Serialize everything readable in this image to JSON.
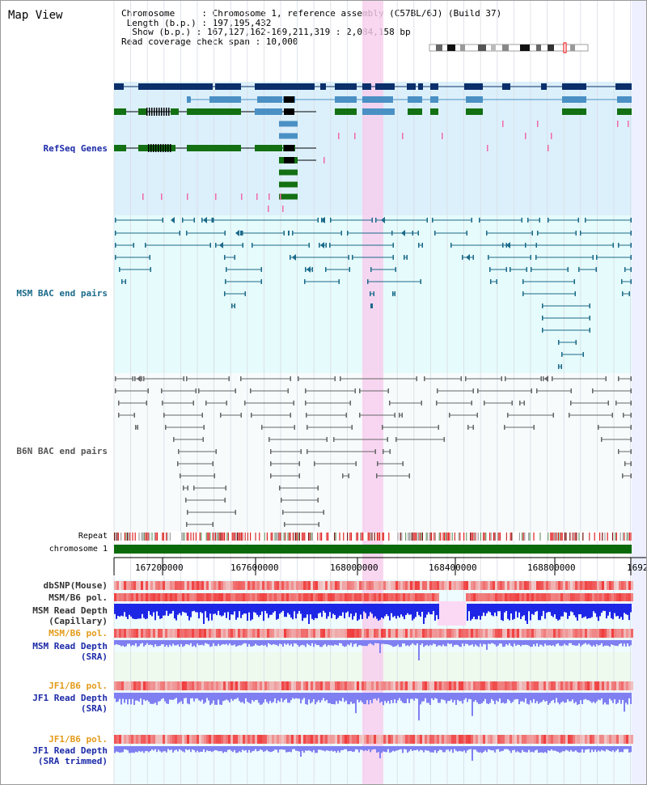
{
  "header": {
    "title": "Map View",
    "info_lines": [
      "Chromosome     : Chromosome 1, reference assembly (C57BL/6J) (Build 37)",
      " Length (b.p.) : 197,195,432",
      "  Show (b.p.) : 167,127,162-169,211,319 : 2,084,158 bp",
      "Read coverage check span : 10,000"
    ]
  },
  "tracks": {
    "refseq_label": "RefSeq Genes",
    "msm_bac_label": "MSM BAC end pairs",
    "b6n_bac_label": "B6N BAC end pairs",
    "repeat_label": "Repeat",
    "chromosome_label": "chromosome 1",
    "dbsnp_label": "dbSNP(Mouse)",
    "msm_b6_pol_label": "MSM/B6 pol.",
    "msm_read_depth_cap_label": "MSM Read Depth",
    "msm_read_depth_cap_sub": "(Capillary)",
    "msm_b6_pol2_label": "MSM/B6 pol.",
    "msm_read_depth_sra_label": "MSM Read Depth",
    "msm_read_depth_sra_sub": "(SRA)",
    "jf1_b6_pol_label": "JF1/B6 pol.",
    "jf1_read_depth_label": "JF1 Read Depth",
    "jf1_read_depth_sub": "(SRA)",
    "jf1_b6_pol2_label": "JF1/B6 pol.",
    "jf1_read_depth_trim_label": "JF1 Read Depth",
    "jf1_read_depth_trim_sub": "(SRA trimmed)"
  },
  "axis": {
    "ticks": [
      "167200000",
      "167600000",
      "168000000",
      "168400000",
      "168800000",
      "1692"
    ]
  },
  "colors": {
    "refseq_bg": "#dcf0fb",
    "bac_bg": "#e6fbfb",
    "b6n_bg": "#f4f9fb",
    "highlight": "#f6d2ee",
    "gene_dark": "#0b2f6b",
    "gene_mid": "#4a90c4",
    "gene_green": "#137013",
    "msm_bac": "#1a6a8a",
    "b6n_bac": "#666666",
    "chrom_bar": "#0a6a0a",
    "blue_label": "#1c2aa8",
    "orange_label": "#e39b1a",
    "depth_blue": "#1e26e6",
    "depth_light": "#7f7ff2"
  }
}
